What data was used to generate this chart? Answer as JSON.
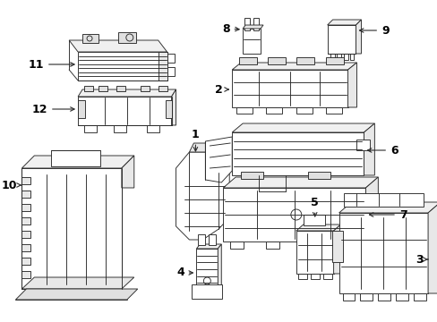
{
  "background_color": "#ffffff",
  "line_color": "#2a2a2a",
  "label_color": "#000000",
  "lw": 0.65,
  "fig_w": 4.89,
  "fig_h": 3.6,
  "dpi": 100
}
